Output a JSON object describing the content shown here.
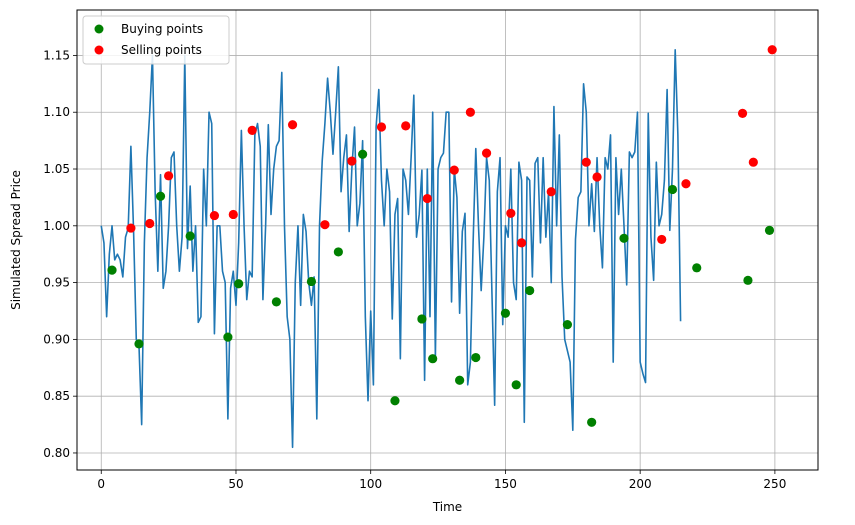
{
  "chart_data": {
    "type": "line",
    "xlabel": "Time",
    "ylabel": "Simulated Spread Price",
    "xlim": [
      -9,
      266
    ],
    "ylim": [
      0.785,
      1.19
    ],
    "xticks": [
      0,
      50,
      100,
      150,
      200,
      250
    ],
    "yticks": [
      0.8,
      0.85,
      0.9,
      0.95,
      1.0,
      1.05,
      1.1,
      1.15
    ],
    "grid": true,
    "legend_position": "top-left",
    "colors": {
      "line": "#1f77b4",
      "buy": "#008000",
      "sell": "#ff0000",
      "grid": "#b0b0b0"
    },
    "legend": [
      {
        "label": "Buying points",
        "color": "#008000"
      },
      {
        "label": "Selling points",
        "color": "#ff0000"
      }
    ],
    "series": [
      {
        "x_start": 0,
        "values": [
          1.0,
          0.985,
          0.92,
          0.975,
          1.0,
          0.97,
          0.975,
          0.97,
          0.955,
          0.99,
          0.998,
          1.07,
          0.995,
          0.9,
          0.895,
          0.825,
          0.985,
          1.06,
          1.1,
          1.15,
          1.03,
          0.96,
          1.045,
          0.945,
          0.96,
          1.0,
          1.06,
          1.065,
          1.0,
          0.96,
          0.99,
          1.15,
          0.98,
          1.035,
          0.96,
          1.0,
          0.915,
          0.92,
          1.05,
          1.0,
          1.1,
          1.09,
          0.905,
          1.0,
          1.0,
          0.96,
          0.95,
          0.83,
          0.945,
          0.96,
          0.93,
          0.985,
          1.084,
          1.0,
          0.935,
          0.96,
          0.955,
          1.08,
          1.09,
          1.07,
          0.935,
          1.0,
          1.089,
          1.01,
          1.05,
          1.07,
          1.075,
          1.135,
          1.0,
          0.92,
          0.9,
          0.805,
          0.95,
          1.0,
          0.93,
          1.01,
          0.995,
          0.95,
          0.93,
          0.955,
          0.83,
          1.0,
          1.057,
          1.09,
          1.13,
          1.1,
          1.063,
          1.1,
          1.14,
          1.03,
          1.06,
          1.08,
          0.995,
          1.05,
          1.087,
          1.0,
          1.02,
          1.075,
          0.92,
          0.846,
          0.925,
          0.86,
          1.087,
          1.12,
          1.04,
          1.0,
          1.05,
          1.03,
          0.918,
          1.01,
          1.024,
          0.883,
          1.05,
          1.04,
          1.01,
          1.06,
          1.115,
          0.99,
          1.01,
          1.049,
          0.864,
          1.05,
          0.92,
          1.1,
          0.884,
          1.05,
          1.06,
          1.064,
          1.1,
          1.1,
          0.933,
          1.05,
          1.025,
          0.923,
          0.995,
          1.011,
          0.86,
          0.88,
          0.985,
          1.068,
          1.0,
          0.943,
          0.99,
          1.06,
          1.04,
          0.94,
          0.842,
          1.03,
          1.06,
          0.913,
          1.0,
          0.99,
          1.05,
          0.95,
          0.935,
          1.056,
          1.04,
          0.827,
          1.043,
          1.04,
          0.955,
          1.055,
          1.06,
          0.985,
          1.06,
          0.99,
          1.03,
          0.95,
          1.105,
          1.0,
          1.08,
          0.955,
          0.9,
          0.89,
          0.88,
          0.82,
          0.988,
          1.025,
          1.03,
          1.125,
          1.1,
          1.0,
          1.037,
          0.995,
          1.06,
          1.0,
          0.963,
          1.06,
          1.05,
          1.08,
          0.88,
          1.06,
          1.01,
          1.05,
          1.0,
          0.948,
          1.065,
          1.06,
          1.065,
          1.1,
          0.88,
          0.87,
          0.862,
          1.099,
          0.99,
          0.952,
          1.056,
          1.0,
          1.01,
          1.04,
          1.12,
          0.996,
          1.05,
          1.155,
          1.08,
          0.916
        ]
      }
    ],
    "buying_points": [
      [
        4,
        0.961
      ],
      [
        14,
        0.896
      ],
      [
        22,
        1.026
      ],
      [
        33,
        0.991
      ],
      [
        47,
        0.902
      ],
      [
        51,
        0.949
      ],
      [
        65,
        0.933
      ],
      [
        78,
        0.951
      ],
      [
        88,
        0.977
      ],
      [
        97,
        1.063
      ],
      [
        109,
        0.846
      ],
      [
        119,
        0.918
      ],
      [
        123,
        0.883
      ],
      [
        133,
        0.864
      ],
      [
        139,
        0.884
      ],
      [
        150,
        0.923
      ],
      [
        154,
        0.86
      ],
      [
        159,
        0.943
      ],
      [
        173,
        0.913
      ],
      [
        182,
        0.827
      ],
      [
        194,
        0.989
      ],
      [
        212,
        1.032
      ],
      [
        221,
        0.963
      ],
      [
        240,
        0.952
      ],
      [
        248,
        0.996
      ]
    ],
    "selling_points": [
      [
        11,
        0.998
      ],
      [
        18,
        1.002
      ],
      [
        25,
        1.044
      ],
      [
        42,
        1.009
      ],
      [
        49,
        1.01
      ],
      [
        56,
        1.084
      ],
      [
        71,
        1.089
      ],
      [
        83,
        1.001
      ],
      [
        93,
        1.057
      ],
      [
        104,
        1.087
      ],
      [
        113,
        1.088
      ],
      [
        121,
        1.024
      ],
      [
        131,
        1.049
      ],
      [
        137,
        1.1
      ],
      [
        143,
        1.064
      ],
      [
        152,
        1.011
      ],
      [
        156,
        0.985
      ],
      [
        167,
        1.03
      ],
      [
        180,
        1.056
      ],
      [
        184,
        1.043
      ],
      [
        208,
        0.988
      ],
      [
        217,
        1.037
      ],
      [
        238,
        1.099
      ],
      [
        242,
        1.056
      ],
      [
        249,
        1.155
      ]
    ]
  }
}
